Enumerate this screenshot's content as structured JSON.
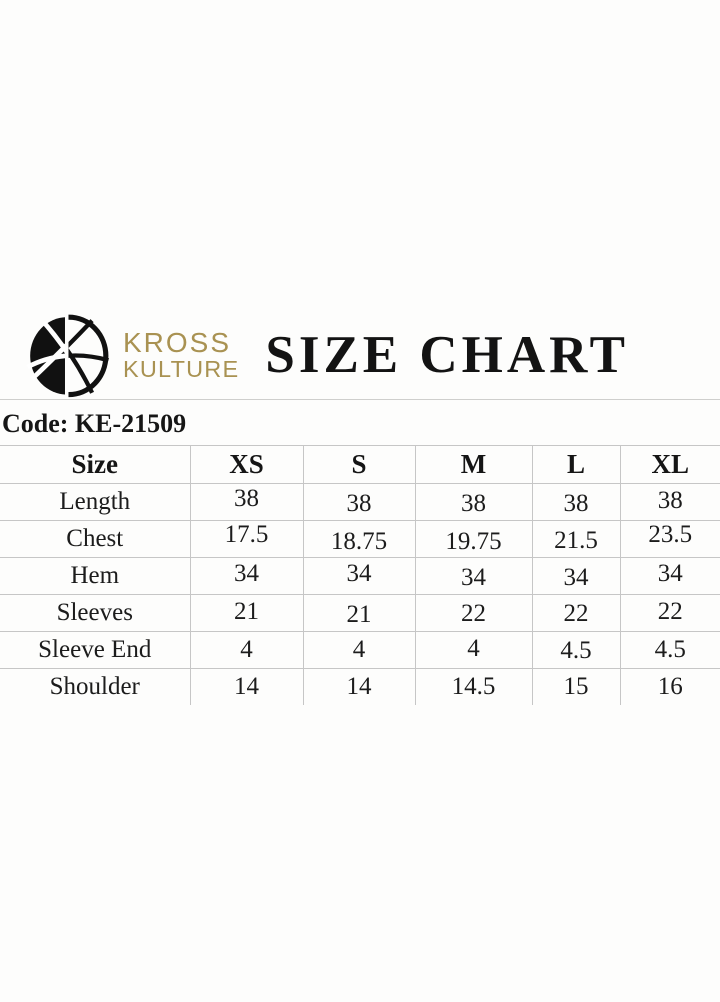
{
  "brand": {
    "line1": "KROSS",
    "line2": "KULTURE",
    "gold_color": "#a99252",
    "logo_icon": "kross-kulture-globe-logo"
  },
  "title": "SIZE CHART",
  "code_line": "Code: KE-21509",
  "chart_data": {
    "type": "table",
    "title": "SIZE CHART",
    "code": "KE-21509",
    "columns": [
      "Size",
      "XS",
      "S",
      "M",
      "L",
      "XL"
    ],
    "rows": [
      {
        "label": "Length",
        "values": [
          "38",
          "38",
          "38",
          "38",
          "38"
        ]
      },
      {
        "label": "Chest",
        "values": [
          "17.5",
          "18.75",
          "19.75",
          "21.5",
          "23.5"
        ]
      },
      {
        "label": "Hem",
        "values": [
          "34",
          "34",
          "34",
          "34",
          "34"
        ]
      },
      {
        "label": "Sleeves",
        "values": [
          "21",
          "21",
          "22",
          "22",
          "22"
        ]
      },
      {
        "label": "Sleeve End",
        "values": [
          "4",
          "4",
          "4",
          "4.5",
          "4.5"
        ]
      },
      {
        "label": "Shoulder",
        "values": [
          "14",
          "14",
          "14.5",
          "15",
          "16"
        ]
      }
    ]
  }
}
